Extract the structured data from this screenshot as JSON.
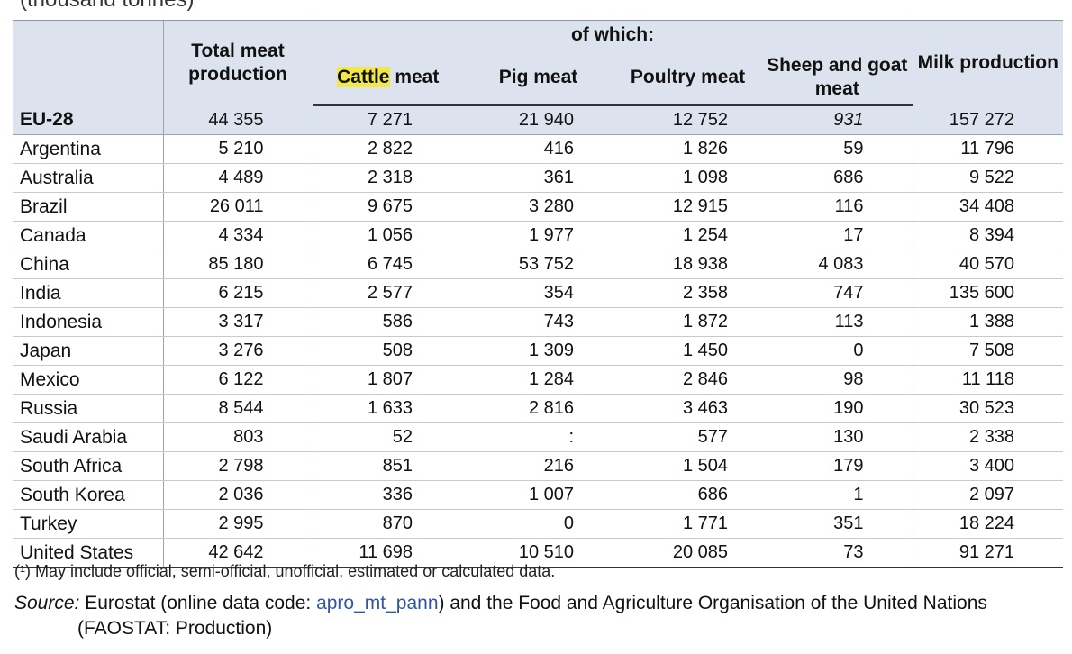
{
  "title_cut": "(thousand tonnes)",
  "header": {
    "total": "Total meat production",
    "of_which": "of which:",
    "cattle_hl": "Cattle",
    "cattle_rest": " meat",
    "pig": "Pig meat",
    "poultry": "Poultry meat",
    "sheep": "Sheep and goat meat",
    "milk": "Milk production"
  },
  "rows": [
    {
      "country": "EU-28",
      "total": "44 355",
      "cattle": "7 271",
      "pig": "21 940",
      "poultry": "12 752",
      "sheep": "931",
      "milk": "157 272"
    },
    {
      "country": "Argentina",
      "total": "5 210",
      "cattle": "2 822",
      "pig": "416",
      "poultry": "1 826",
      "sheep": "59",
      "milk": "11 796"
    },
    {
      "country": "Australia",
      "total": "4 489",
      "cattle": "2 318",
      "pig": "361",
      "poultry": "1 098",
      "sheep": "686",
      "milk": "9 522"
    },
    {
      "country": "Brazil",
      "total": "26 011",
      "cattle": "9 675",
      "pig": "3 280",
      "poultry": "12 915",
      "sheep": "116",
      "milk": "34 408"
    },
    {
      "country": "Canada",
      "total": "4 334",
      "cattle": "1 056",
      "pig": "1 977",
      "poultry": "1 254",
      "sheep": "17",
      "milk": "8 394"
    },
    {
      "country": "China",
      "total": "85 180",
      "cattle": "6 745",
      "pig": "53 752",
      "poultry": "18 938",
      "sheep": "4 083",
      "milk": "40 570"
    },
    {
      "country": "India",
      "total": "6 215",
      "cattle": "2 577",
      "pig": "354",
      "poultry": "2 358",
      "sheep": "747",
      "milk": "135 600"
    },
    {
      "country": "Indonesia",
      "total": "3 317",
      "cattle": "586",
      "pig": "743",
      "poultry": "1 872",
      "sheep": "113",
      "milk": "1 388"
    },
    {
      "country": "Japan",
      "total": "3 276",
      "cattle": "508",
      "pig": "1 309",
      "poultry": "1 450",
      "sheep": "0",
      "milk": "7 508"
    },
    {
      "country": "Mexico",
      "total": "6 122",
      "cattle": "1 807",
      "pig": "1 284",
      "poultry": "2 846",
      "sheep": "98",
      "milk": "11 118"
    },
    {
      "country": "Russia",
      "total": "8 544",
      "cattle": "1 633",
      "pig": "2 816",
      "poultry": "3 463",
      "sheep": "190",
      "milk": "30 523"
    },
    {
      "country": "Saudi Arabia",
      "total": "803",
      "cattle": "52",
      "pig": ":",
      "poultry": "577",
      "sheep": "130",
      "milk": "2 338"
    },
    {
      "country": "South Africa",
      "total": "2 798",
      "cattle": "851",
      "pig": "216",
      "poultry": "1 504",
      "sheep": "179",
      "milk": "3 400"
    },
    {
      "country": "South Korea",
      "total": "2 036",
      "cattle": "336",
      "pig": "1 007",
      "poultry": "686",
      "sheep": "1",
      "milk": "2 097"
    },
    {
      "country": "Turkey",
      "total": "2 995",
      "cattle": "870",
      "pig": "0",
      "poultry": "1 771",
      "sheep": "351",
      "milk": "18 224"
    },
    {
      "country": "United States",
      "total": "42 642",
      "cattle": "11 698",
      "pig": "10 510",
      "poultry": "20 085",
      "sheep": "73",
      "milk": "91 271"
    }
  ],
  "footnote": {
    "marker": "(¹)",
    "text": "May include official, semi-official, unofficial, estimated or calculated data."
  },
  "source": {
    "label": "Source:",
    "text_before": "Eurostat (online data code: ",
    "link": "apro_mt_pann",
    "text_after": ") and the Food and Agriculture Organisation of the United Nations",
    "line2": "(FAOSTAT: Production)"
  },
  "colors": {
    "header_bg": "#dde3ee",
    "highlight": "#f2e84a",
    "link": "#3355a0"
  }
}
